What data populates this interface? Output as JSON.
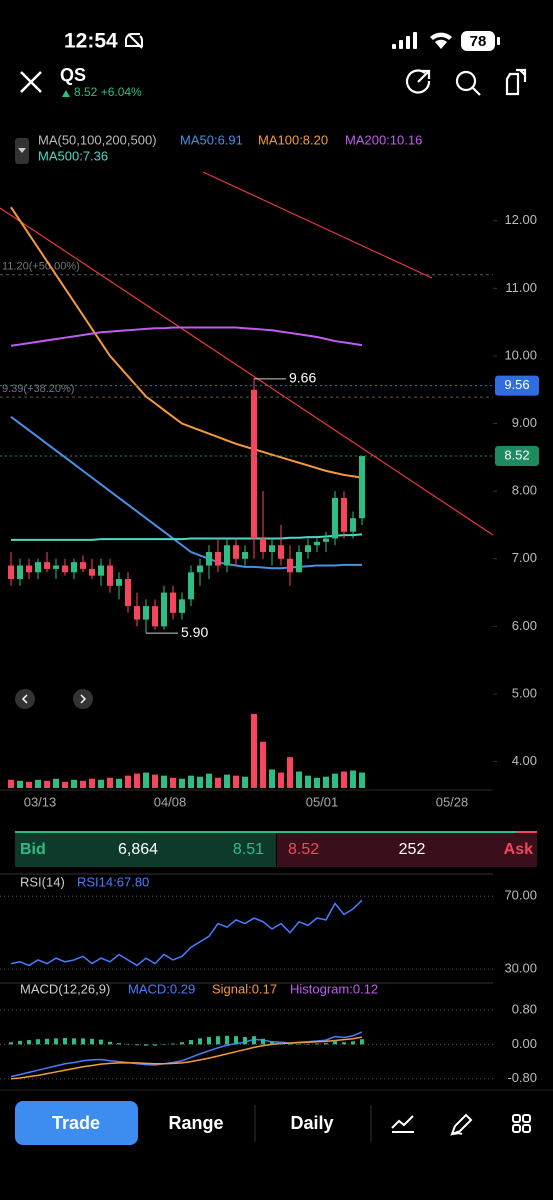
{
  "status_bar": {
    "time": "12:54",
    "battery": "78"
  },
  "header": {
    "symbol": "QS",
    "quote": "8.52 +6.04%"
  },
  "order_book": {
    "bid_label": "Bid",
    "bid_size": "6,864",
    "bid_price": "8.51",
    "ask_price": "8.52",
    "ask_size": "252",
    "ask_label": "Ask"
  },
  "toolbar": {
    "trade": "Trade",
    "range": "Range",
    "daily": "Daily"
  },
  "chart_data": [
    {
      "type": "candlestick",
      "legend_title": "MA(50,100,200,500)",
      "ylim": [
        3.58,
        12.75
      ],
      "yticks": [
        {
          "value": 12,
          "label": "12.00"
        },
        {
          "value": 11,
          "label": "11.00"
        },
        {
          "value": 10,
          "label": "10.00"
        },
        {
          "value": 9,
          "label": "9.00"
        },
        {
          "value": 8,
          "label": "8.00"
        },
        {
          "value": 7,
          "label": "7.00"
        },
        {
          "value": 6,
          "label": "6.00"
        },
        {
          "value": 5,
          "label": "5.00"
        },
        {
          "value": 4,
          "label": "4.00"
        }
      ],
      "x_labels": [
        "03/13",
        "04/08",
        "05/01",
        "05/28"
      ],
      "up_color": "#2ebd85",
      "down_color": "#f6465d",
      "candles": {
        "open": [
          6.9,
          6.7,
          6.9,
          6.8,
          6.95,
          6.85,
          6.9,
          6.8,
          6.95,
          6.85,
          6.75,
          6.9,
          6.6,
          6.7,
          6.3,
          6.1,
          6.3,
          6.0,
          6.5,
          6.2,
          6.4,
          6.8,
          6.9,
          7.1,
          6.9,
          7.2,
          7.0,
          9.5,
          7.3,
          7.1,
          7.2,
          7.0,
          6.8,
          7.1,
          7.2,
          7.25,
          7.3,
          7.9,
          7.4,
          7.6
        ],
        "high": [
          7.1,
          7.0,
          7.0,
          7.0,
          7.1,
          7.0,
          7.0,
          7.0,
          7.05,
          7.0,
          7.0,
          7.0,
          6.8,
          6.8,
          6.5,
          6.4,
          6.4,
          6.6,
          6.6,
          6.5,
          6.9,
          7.0,
          7.2,
          7.3,
          7.3,
          7.3,
          7.2,
          9.66,
          8.0,
          7.3,
          7.5,
          7.2,
          7.2,
          7.3,
          7.3,
          7.4,
          8.0,
          8.0,
          7.7,
          8.5
        ],
        "low": [
          6.6,
          6.6,
          6.7,
          6.7,
          6.8,
          6.7,
          6.75,
          6.7,
          6.8,
          6.7,
          6.6,
          6.5,
          6.4,
          6.2,
          6.0,
          5.9,
          5.95,
          5.95,
          6.1,
          6.1,
          6.3,
          6.6,
          6.7,
          6.8,
          6.8,
          6.9,
          6.9,
          7.0,
          7.0,
          6.9,
          6.9,
          6.6,
          6.8,
          7.0,
          7.1,
          7.1,
          7.2,
          7.3,
          7.3,
          7.5
        ],
        "close": [
          6.7,
          6.9,
          6.8,
          6.95,
          6.85,
          6.9,
          6.8,
          6.95,
          6.85,
          6.75,
          6.9,
          6.6,
          6.7,
          6.3,
          6.1,
          6.3,
          6.0,
          6.5,
          6.2,
          6.4,
          6.8,
          6.9,
          7.1,
          6.9,
          7.2,
          7.0,
          7.1,
          7.3,
          7.1,
          7.2,
          7.0,
          6.8,
          7.1,
          7.2,
          7.25,
          7.3,
          7.9,
          7.4,
          7.6,
          8.52
        ]
      },
      "volume": [
        8,
        7,
        6,
        8,
        7,
        9,
        6,
        8,
        7,
        9,
        8,
        10,
        9,
        12,
        14,
        15,
        13,
        12,
        10,
        9,
        12,
        11,
        14,
        10,
        13,
        12,
        11,
        72,
        45,
        18,
        15,
        30,
        16,
        12,
        10,
        11,
        14,
        16,
        17,
        15
      ],
      "series": [
        {
          "name": "MA50:6.91",
          "color": "#4a90e2",
          "values": [
            9.1,
            9.0,
            8.9,
            8.8,
            8.7,
            8.6,
            8.5,
            8.4,
            8.3,
            8.2,
            8.1,
            8.0,
            7.9,
            7.8,
            7.7,
            7.6,
            7.5,
            7.4,
            7.3,
            7.2,
            7.1,
            7.05,
            7.0,
            6.95,
            6.92,
            6.9,
            6.88,
            6.88,
            6.87,
            6.86,
            6.86,
            6.87,
            6.88,
            6.89,
            6.9,
            6.9,
            6.9,
            6.91,
            6.91,
            6.91
          ]
        },
        {
          "name": "MA100:8.20",
          "color": "#f59b3a",
          "values": [
            12.2,
            12.0,
            11.8,
            11.6,
            11.4,
            11.2,
            11.0,
            10.8,
            10.6,
            10.4,
            10.2,
            10.0,
            9.85,
            9.7,
            9.55,
            9.4,
            9.3,
            9.2,
            9.1,
            9.0,
            8.95,
            8.9,
            8.85,
            8.8,
            8.75,
            8.7,
            8.66,
            8.62,
            8.58,
            8.54,
            8.5,
            8.46,
            8.42,
            8.38,
            8.34,
            8.3,
            8.27,
            8.24,
            8.22,
            8.2
          ]
        },
        {
          "name": "MA200:10.16",
          "color": "#c15cf0",
          "values": [
            10.15,
            10.17,
            10.19,
            10.21,
            10.23,
            10.25,
            10.27,
            10.29,
            10.31,
            10.33,
            10.35,
            10.36,
            10.37,
            10.38,
            10.39,
            10.4,
            10.41,
            10.41,
            10.42,
            10.42,
            10.42,
            10.42,
            10.42,
            10.42,
            10.42,
            10.42,
            10.41,
            10.4,
            10.39,
            10.38,
            10.36,
            10.34,
            10.32,
            10.3,
            10.28,
            10.25,
            10.22,
            10.2,
            10.18,
            10.16
          ]
        },
        {
          "name": "MA500:7.36",
          "color": "#4fd8c4",
          "values": [
            7.28,
            7.28,
            7.28,
            7.28,
            7.28,
            7.28,
            7.28,
            7.28,
            7.28,
            7.28,
            7.29,
            7.29,
            7.29,
            7.29,
            7.29,
            7.29,
            7.29,
            7.29,
            7.29,
            7.29,
            7.3,
            7.3,
            7.3,
            7.3,
            7.3,
            7.3,
            7.3,
            7.3,
            7.3,
            7.3,
            7.3,
            7.31,
            7.31,
            7.32,
            7.32,
            7.33,
            7.34,
            7.35,
            7.35,
            7.36
          ]
        }
      ],
      "levels": [
        {
          "value": 11.2,
          "label": "11.20(+50.00%)"
        },
        {
          "value": 9.39,
          "label": "9.39(+38.20%)"
        }
      ],
      "markers": [
        {
          "value": 9.56,
          "label": "9.56",
          "color": "#2f6de1"
        },
        {
          "value": 8.52,
          "label": "8.52",
          "color": "#1f8a60"
        }
      ],
      "high": {
        "value": 9.66,
        "label": "9.66"
      },
      "low": {
        "value": 5.9,
        "label": "5.90"
      }
    },
    {
      "type": "line",
      "title": "RSI(14)",
      "ylim": [
        24,
        80
      ],
      "yticks": [
        {
          "value": 70,
          "label": "70.00"
        },
        {
          "value": 30,
          "label": "30.00"
        }
      ],
      "series": [
        {
          "name": "RSI14:67.80",
          "color": "#4a7dff",
          "values": [
            33,
            34,
            32,
            35,
            33,
            36,
            34,
            35,
            37,
            33,
            36,
            34,
            38,
            35,
            32,
            36,
            33,
            38,
            35,
            37,
            42,
            45,
            48,
            55,
            53,
            57,
            55,
            58,
            56,
            52,
            55,
            50,
            56,
            54,
            58,
            57,
            66,
            60,
            63,
            67.8
          ]
        }
      ]
    },
    {
      "type": "line",
      "title": "MACD(12,26,9)",
      "ylim": [
        -1.06,
        1.38
      ],
      "yticks": [
        {
          "value": 0.8,
          "label": "0.80"
        },
        {
          "value": 0,
          "label": "0.00"
        },
        {
          "value": -0.8,
          "label": "-0.80"
        }
      ],
      "series": [
        {
          "name": "MACD:0.29",
          "color": "#4a7dff",
          "values": [
            -0.75,
            -0.7,
            -0.65,
            -0.6,
            -0.55,
            -0.5,
            -0.45,
            -0.42,
            -0.38,
            -0.36,
            -0.35,
            -0.38,
            -0.4,
            -0.42,
            -0.45,
            -0.47,
            -0.48,
            -0.45,
            -0.42,
            -0.38,
            -0.3,
            -0.22,
            -0.15,
            -0.08,
            -0.02,
            0.02,
            0.05,
            0.12,
            0.1,
            0.06,
            0.05,
            0.03,
            0.05,
            0.06,
            0.08,
            0.1,
            0.18,
            0.16,
            0.2,
            0.29
          ]
        },
        {
          "name": "Signal:0.17",
          "color": "#f59b3a",
          "values": [
            -0.8,
            -0.78,
            -0.75,
            -0.72,
            -0.68,
            -0.64,
            -0.6,
            -0.56,
            -0.52,
            -0.49,
            -0.46,
            -0.44,
            -0.43,
            -0.43,
            -0.43,
            -0.44,
            -0.45,
            -0.45,
            -0.44,
            -0.43,
            -0.4,
            -0.36,
            -0.32,
            -0.27,
            -0.22,
            -0.17,
            -0.12,
            -0.07,
            -0.03,
            0.0,
            0.02,
            0.03,
            0.04,
            0.05,
            0.06,
            0.07,
            0.09,
            0.11,
            0.13,
            0.17
          ]
        },
        {
          "name": "Histogram:0.12",
          "color": "#c15cf0",
          "type": "bar",
          "bar_color": "#2ebd85",
          "values": [
            0.05,
            0.08,
            0.1,
            0.12,
            0.13,
            0.14,
            0.15,
            0.14,
            0.14,
            0.13,
            0.11,
            0.06,
            0.03,
            0.01,
            -0.02,
            -0.03,
            -0.03,
            0,
            0.02,
            0.05,
            0.1,
            0.14,
            0.17,
            0.19,
            0.2,
            0.19,
            0.17,
            0.19,
            0.13,
            0.06,
            0.03,
            0,
            0.01,
            0.01,
            0.02,
            0.03,
            0.09,
            0.05,
            0.07,
            0.12
          ]
        }
      ]
    }
  ]
}
